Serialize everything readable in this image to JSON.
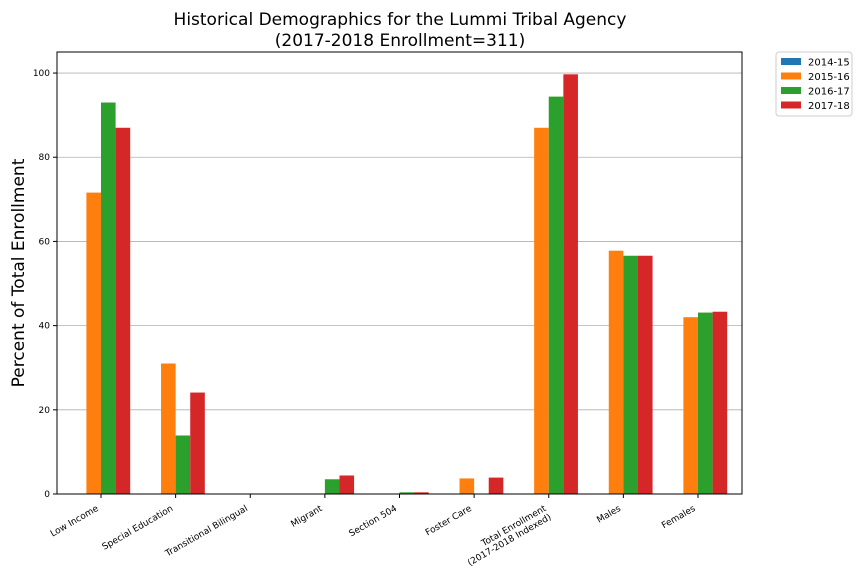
{
  "chart_data": {
    "type": "bar",
    "title": "Historical Demographics for the Lummi Tribal Agency",
    "subtitle": "(2017-2018 Enrollment=311)",
    "ylabel": "Percent of Total Enrollment",
    "xlabel": "",
    "ylim": [
      0,
      105
    ],
    "yticks": [
      0,
      20,
      40,
      60,
      80,
      100
    ],
    "grid": "horizontal",
    "legend_position": "outside-top-right",
    "categories": [
      [
        "Low Income"
      ],
      [
        "Special Education"
      ],
      [
        "Transitional Bilingual"
      ],
      [
        "Migrant"
      ],
      [
        "Section 504"
      ],
      [
        "Foster Care"
      ],
      [
        "Total Enrollment",
        "(2017-2018 Indexed)"
      ],
      [
        "Males"
      ],
      [
        "Females"
      ]
    ],
    "series": [
      {
        "name": "2014-15",
        "color": "#1f77b4",
        "values": [
          0,
          0,
          0,
          0,
          0,
          0,
          0,
          0,
          0
        ]
      },
      {
        "name": "2015-16",
        "color": "#ff7f0e",
        "values": [
          71.6,
          31.0,
          0,
          0,
          0,
          3.7,
          87.0,
          57.8,
          42.0
        ]
      },
      {
        "name": "2016-17",
        "color": "#2ca02c",
        "values": [
          93.0,
          13.9,
          0,
          3.5,
          0.4,
          0,
          94.4,
          56.6,
          43.1
        ]
      },
      {
        "name": "2017-18",
        "color": "#d62728",
        "values": [
          87.0,
          24.1,
          0,
          4.4,
          0.4,
          3.9,
          99.7,
          56.6,
          43.3
        ]
      }
    ]
  }
}
